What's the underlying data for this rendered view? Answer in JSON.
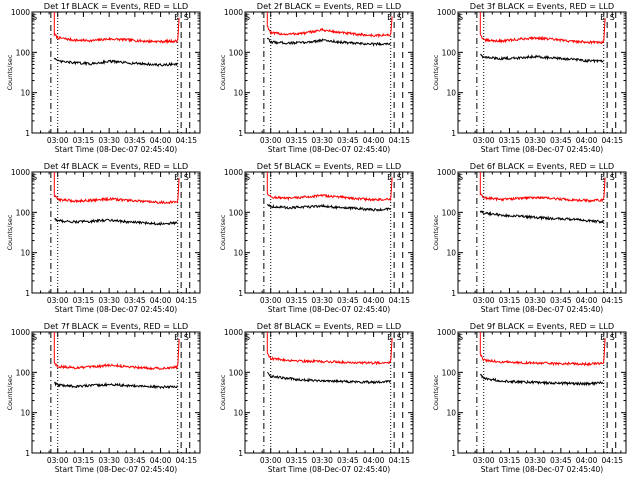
{
  "chart_data": [
    {
      "type": "line",
      "title": "Det 1f BLACK = Events, RED = LLD",
      "xlabel": "Start Time (08-Dec-07 02:45:40)",
      "ylabel": "Counts/sec",
      "yscale": "log",
      "ylim": [
        1,
        1000
      ],
      "yticks": [
        "1",
        "10",
        "100",
        "1000"
      ],
      "xticks": [
        "03:00",
        "03:15",
        "03:30",
        "03:45",
        "04:00",
        "04:15"
      ],
      "markers": [
        "S",
        "E",
        "S"
      ],
      "series": [
        {
          "color": "#ff0000",
          "x": [
            "02:58",
            "03:00",
            "03:10",
            "03:20",
            "03:30",
            "03:40",
            "03:50",
            "04:00",
            "04:10",
            "04:11"
          ],
          "y": [
            280,
            230,
            200,
            195,
            215,
            205,
            190,
            185,
            190,
            1000
          ]
        },
        {
          "color": "#000000",
          "x": [
            "02:58",
            "03:00",
            "03:10",
            "03:20",
            "03:30",
            "03:40",
            "03:50",
            "04:00",
            "04:10"
          ],
          "y": [
            75,
            60,
            55,
            52,
            60,
            55,
            52,
            48,
            52
          ]
        }
      ]
    },
    {
      "type": "line",
      "title": "Det 2f BLACK = Events, RED = LLD",
      "xlabel": "Start Time (08-Dec-07 02:45:40)",
      "ylabel": "Counts/sec",
      "yscale": "log",
      "ylim": [
        1,
        1000
      ],
      "yticks": [
        "1",
        "10",
        "100",
        "1000"
      ],
      "xticks": [
        "03:00",
        "03:15",
        "03:30",
        "03:45",
        "04:00",
        "04:15"
      ],
      "markers": [
        "S",
        "E",
        "S"
      ],
      "series": [
        {
          "color": "#ff0000",
          "x": [
            "02:58",
            "03:00",
            "03:10",
            "03:20",
            "03:30",
            "03:40",
            "03:50",
            "04:00",
            "04:10",
            "04:11"
          ],
          "y": [
            450,
            300,
            280,
            300,
            360,
            310,
            280,
            260,
            270,
            1000
          ]
        },
        {
          "color": "#000000",
          "x": [
            "02:58",
            "03:00",
            "03:10",
            "03:20",
            "03:30",
            "03:40",
            "03:50",
            "04:00",
            "04:10"
          ],
          "y": [
            220,
            180,
            170,
            175,
            200,
            180,
            165,
            160,
            165
          ]
        }
      ]
    },
    {
      "type": "line",
      "title": "Det 3f BLACK = Events, RED = LLD",
      "xlabel": "Start Time (08-Dec-07 02:45:40)",
      "ylabel": "Counts/sec",
      "yscale": "log",
      "ylim": [
        1,
        1000
      ],
      "yticks": [
        "1",
        "10",
        "100",
        "1000"
      ],
      "xticks": [
        "03:00",
        "03:15",
        "03:30",
        "03:45",
        "04:00",
        "04:15"
      ],
      "markers": [
        "S",
        "E",
        "S"
      ],
      "series": [
        {
          "color": "#ff0000",
          "x": [
            "02:58",
            "03:00",
            "03:10",
            "03:20",
            "03:30",
            "03:40",
            "03:50",
            "04:00",
            "04:10",
            "04:11"
          ],
          "y": [
            280,
            200,
            190,
            210,
            230,
            210,
            190,
            180,
            175,
            1000
          ]
        },
        {
          "color": "#000000",
          "x": [
            "02:58",
            "03:00",
            "03:10",
            "03:20",
            "03:30",
            "03:40",
            "03:50",
            "04:00",
            "04:10"
          ],
          "y": [
            90,
            75,
            70,
            72,
            80,
            72,
            68,
            62,
            60
          ]
        }
      ]
    },
    {
      "type": "line",
      "title": "Det 4f BLACK = Events, RED = LLD",
      "xlabel": "Start Time (08-Dec-07 02:45:40)",
      "ylabel": "Counts/sec",
      "yscale": "log",
      "ylim": [
        1,
        1000
      ],
      "yticks": [
        "1",
        "10",
        "100",
        "1000"
      ],
      "xticks": [
        "03:00",
        "03:15",
        "03:30",
        "03:45",
        "04:00",
        "04:15"
      ],
      "markers": [
        "S",
        "E",
        "S"
      ],
      "series": [
        {
          "color": "#ff0000",
          "x": [
            "02:58",
            "03:00",
            "03:10",
            "03:20",
            "03:30",
            "03:40",
            "03:50",
            "04:00",
            "04:10",
            "04:11"
          ],
          "y": [
            260,
            210,
            190,
            200,
            215,
            200,
            185,
            175,
            180,
            1000
          ]
        },
        {
          "color": "#000000",
          "x": [
            "02:58",
            "03:00",
            "03:10",
            "03:20",
            "03:30",
            "03:40",
            "03:50",
            "04:00",
            "04:10"
          ],
          "y": [
            70,
            62,
            58,
            60,
            65,
            58,
            55,
            52,
            55
          ]
        }
      ]
    },
    {
      "type": "line",
      "title": "Det 5f BLACK = Events, RED = LLD",
      "xlabel": "Start Time (08-Dec-07 02:45:40)",
      "ylabel": "Counts/sec",
      "yscale": "log",
      "ylim": [
        1,
        1000
      ],
      "yticks": [
        "1",
        "10",
        "100",
        "1000"
      ],
      "xticks": [
        "03:00",
        "03:15",
        "03:30",
        "03:45",
        "04:00",
        "04:15"
      ],
      "markers": [
        "S",
        "E",
        "S"
      ],
      "series": [
        {
          "color": "#ff0000",
          "x": [
            "02:58",
            "03:00",
            "03:10",
            "03:20",
            "03:30",
            "03:40",
            "03:50",
            "04:00",
            "04:10",
            "04:11"
          ],
          "y": [
            300,
            240,
            220,
            240,
            260,
            240,
            220,
            205,
            210,
            1000
          ]
        },
        {
          "color": "#000000",
          "x": [
            "02:58",
            "03:00",
            "03:10",
            "03:20",
            "03:30",
            "03:40",
            "03:50",
            "04:00",
            "04:10"
          ],
          "y": [
            160,
            140,
            130,
            135,
            145,
            130,
            125,
            115,
            120
          ]
        }
      ]
    },
    {
      "type": "line",
      "title": "Det 6f BLACK = Events, RED = LLD",
      "xlabel": "Start Time (08-Dec-07 02:45:40)",
      "ylabel": "Counts/sec",
      "yscale": "log",
      "ylim": [
        1,
        1000
      ],
      "yticks": [
        "1",
        "10",
        "100",
        "1000"
      ],
      "xticks": [
        "03:00",
        "03:15",
        "03:30",
        "03:45",
        "04:00",
        "04:15"
      ],
      "markers": [
        "S",
        "E",
        "S"
      ],
      "series": [
        {
          "color": "#ff0000",
          "x": [
            "02:58",
            "03:00",
            "03:10",
            "03:20",
            "03:30",
            "03:40",
            "03:50",
            "04:00",
            "04:10",
            "04:11"
          ],
          "y": [
            280,
            230,
            210,
            220,
            235,
            220,
            205,
            195,
            200,
            1000
          ]
        },
        {
          "color": "#000000",
          "x": [
            "02:58",
            "03:00",
            "03:10",
            "03:20",
            "03:30",
            "03:40",
            "03:50",
            "04:00",
            "04:10"
          ],
          "y": [
            110,
            95,
            85,
            80,
            75,
            70,
            68,
            62,
            58
          ]
        }
      ]
    },
    {
      "type": "line",
      "title": "Det 7f BLACK = Events, RED = LLD",
      "xlabel": "Start Time (08-Dec-07 02:45:40)",
      "ylabel": "Counts/sec",
      "yscale": "log",
      "ylim": [
        1,
        1000
      ],
      "yticks": [
        "1",
        "10",
        "100",
        "1000"
      ],
      "xticks": [
        "03:00",
        "03:15",
        "03:30",
        "03:45",
        "04:00",
        "04:15"
      ],
      "markers": [
        "S",
        "E",
        "S"
      ],
      "series": [
        {
          "color": "#ff0000",
          "x": [
            "02:58",
            "03:00",
            "03:10",
            "03:20",
            "03:30",
            "03:40",
            "03:50",
            "04:00",
            "04:10",
            "04:11"
          ],
          "y": [
            170,
            140,
            130,
            135,
            150,
            140,
            130,
            125,
            135,
            1000
          ]
        },
        {
          "color": "#000000",
          "x": [
            "02:58",
            "03:00",
            "03:10",
            "03:20",
            "03:30",
            "03:40",
            "03:50",
            "04:00",
            "04:10"
          ],
          "y": [
            55,
            48,
            45,
            47,
            50,
            47,
            45,
            43,
            45
          ]
        }
      ]
    },
    {
      "type": "line",
      "title": "Det 8f BLACK = Events, RED = LLD",
      "xlabel": "Start Time (08-Dec-07 02:45:40)",
      "ylabel": "Counts/sec",
      "yscale": "log",
      "ylim": [
        1,
        1000
      ],
      "yticks": [
        "1",
        "10",
        "100",
        "1000"
      ],
      "xticks": [
        "03:00",
        "03:15",
        "03:30",
        "03:45",
        "04:00",
        "04:15"
      ],
      "markers": [
        "S",
        "E",
        "S"
      ],
      "series": [
        {
          "color": "#ff0000",
          "x": [
            "02:58",
            "03:00",
            "03:10",
            "03:20",
            "03:30",
            "03:40",
            "03:50",
            "04:00",
            "04:10",
            "04:11"
          ],
          "y": [
            300,
            220,
            200,
            190,
            185,
            180,
            175,
            170,
            180,
            1000
          ]
        },
        {
          "color": "#000000",
          "x": [
            "02:58",
            "03:00",
            "03:10",
            "03:20",
            "03:30",
            "03:40",
            "03:50",
            "04:00",
            "04:10"
          ],
          "y": [
            100,
            80,
            70,
            65,
            62,
            60,
            58,
            57,
            60
          ]
        }
      ]
    },
    {
      "type": "line",
      "title": "Det 9f BLACK = Events, RED = LLD",
      "xlabel": "Start Time (08-Dec-07 02:45:40)",
      "ylabel": "Counts/sec",
      "yscale": "log",
      "ylim": [
        1,
        1000
      ],
      "yticks": [
        "1",
        "10",
        "100",
        "1000"
      ],
      "xticks": [
        "03:00",
        "03:15",
        "03:30",
        "03:45",
        "04:00",
        "04:15"
      ],
      "markers": [
        "S",
        "E",
        "S"
      ],
      "series": [
        {
          "color": "#ff0000",
          "x": [
            "02:58",
            "03:00",
            "03:10",
            "03:20",
            "03:30",
            "03:40",
            "03:50",
            "04:00",
            "04:10",
            "04:11"
          ],
          "y": [
            280,
            200,
            180,
            175,
            170,
            165,
            165,
            160,
            170,
            1000
          ]
        },
        {
          "color": "#000000",
          "x": [
            "02:58",
            "03:00",
            "03:10",
            "03:20",
            "03:30",
            "03:40",
            "03:50",
            "04:00",
            "04:10"
          ],
          "y": [
            90,
            70,
            62,
            58,
            56,
            54,
            53,
            52,
            55
          ]
        }
      ]
    }
  ]
}
